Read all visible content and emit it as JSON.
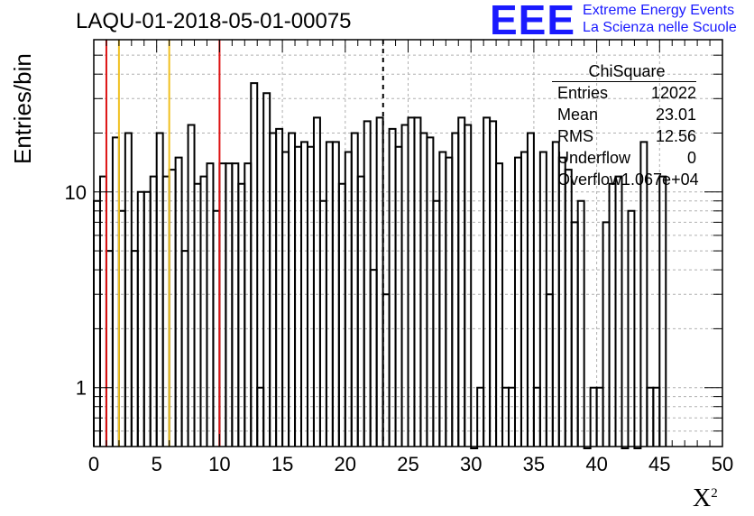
{
  "header": {
    "title": "LAQU-01-2018-05-01-00075",
    "brand_logo": "EEE",
    "brand_line1": "Extreme Energy Events",
    "brand_line2": "La Scienza nelle Scuole"
  },
  "stats_box": {
    "title": "ChiSquare",
    "rows": [
      {
        "label": "Entries",
        "value": "12022"
      },
      {
        "label": "Mean",
        "value": "23.01"
      },
      {
        "label": "RMS",
        "value": "12.56"
      },
      {
        "label": "Underflow",
        "value": "0"
      },
      {
        "label": "Overflow",
        "value": "1.067e+04"
      }
    ]
  },
  "colors": {
    "histogram": "#000000",
    "red_line": "#dd1111",
    "yellow_line": "#f0c020",
    "grid": "#b0b0b0",
    "brand": "#1a1aff"
  },
  "chart_data": {
    "type": "histogram",
    "title": "LAQU-01-2018-05-01-00075",
    "xlabel": "X",
    "xlabel_superscript": "2",
    "ylabel": "Entries/bin",
    "xlim": [
      0,
      50
    ],
    "ylim": [
      0.5,
      60
    ],
    "y_scale": "log",
    "grid": true,
    "x_ticks": [
      "0",
      "5",
      "10",
      "15",
      "20",
      "25",
      "30",
      "35",
      "40",
      "45",
      "50"
    ],
    "y_ticks": [
      "1",
      "10"
    ],
    "bin_width": 0.5,
    "bin_start": 0,
    "values": [
      9,
      12,
      5,
      19,
      8,
      20,
      5,
      10,
      10,
      12,
      20,
      12,
      13,
      15,
      5,
      22,
      11,
      12,
      14,
      8,
      14,
      14,
      14,
      11,
      14,
      36,
      1,
      32,
      20,
      21,
      16,
      20,
      17,
      18,
      17,
      24,
      9,
      18,
      18,
      11,
      16,
      20,
      12,
      23,
      4,
      24,
      3,
      21,
      17,
      22,
      24,
      24,
      20,
      19,
      9,
      16,
      15,
      20,
      24,
      22,
      0,
      1,
      24,
      23,
      14,
      1,
      1,
      15,
      16,
      20,
      1,
      16,
      3,
      18,
      15,
      13,
      7,
      9,
      0,
      1,
      1,
      7,
      11,
      12,
      0,
      8,
      0,
      18,
      1,
      1,
      12
    ],
    "vertical_lines": [
      {
        "x": 1,
        "style": "solid",
        "color": "red"
      },
      {
        "x": 2,
        "style": "solid",
        "color": "yellow"
      },
      {
        "x": 6,
        "style": "solid",
        "color": "yellow"
      },
      {
        "x": 10,
        "style": "solid",
        "color": "red"
      },
      {
        "x": 23.01,
        "style": "dashed",
        "color": "black"
      }
    ]
  }
}
